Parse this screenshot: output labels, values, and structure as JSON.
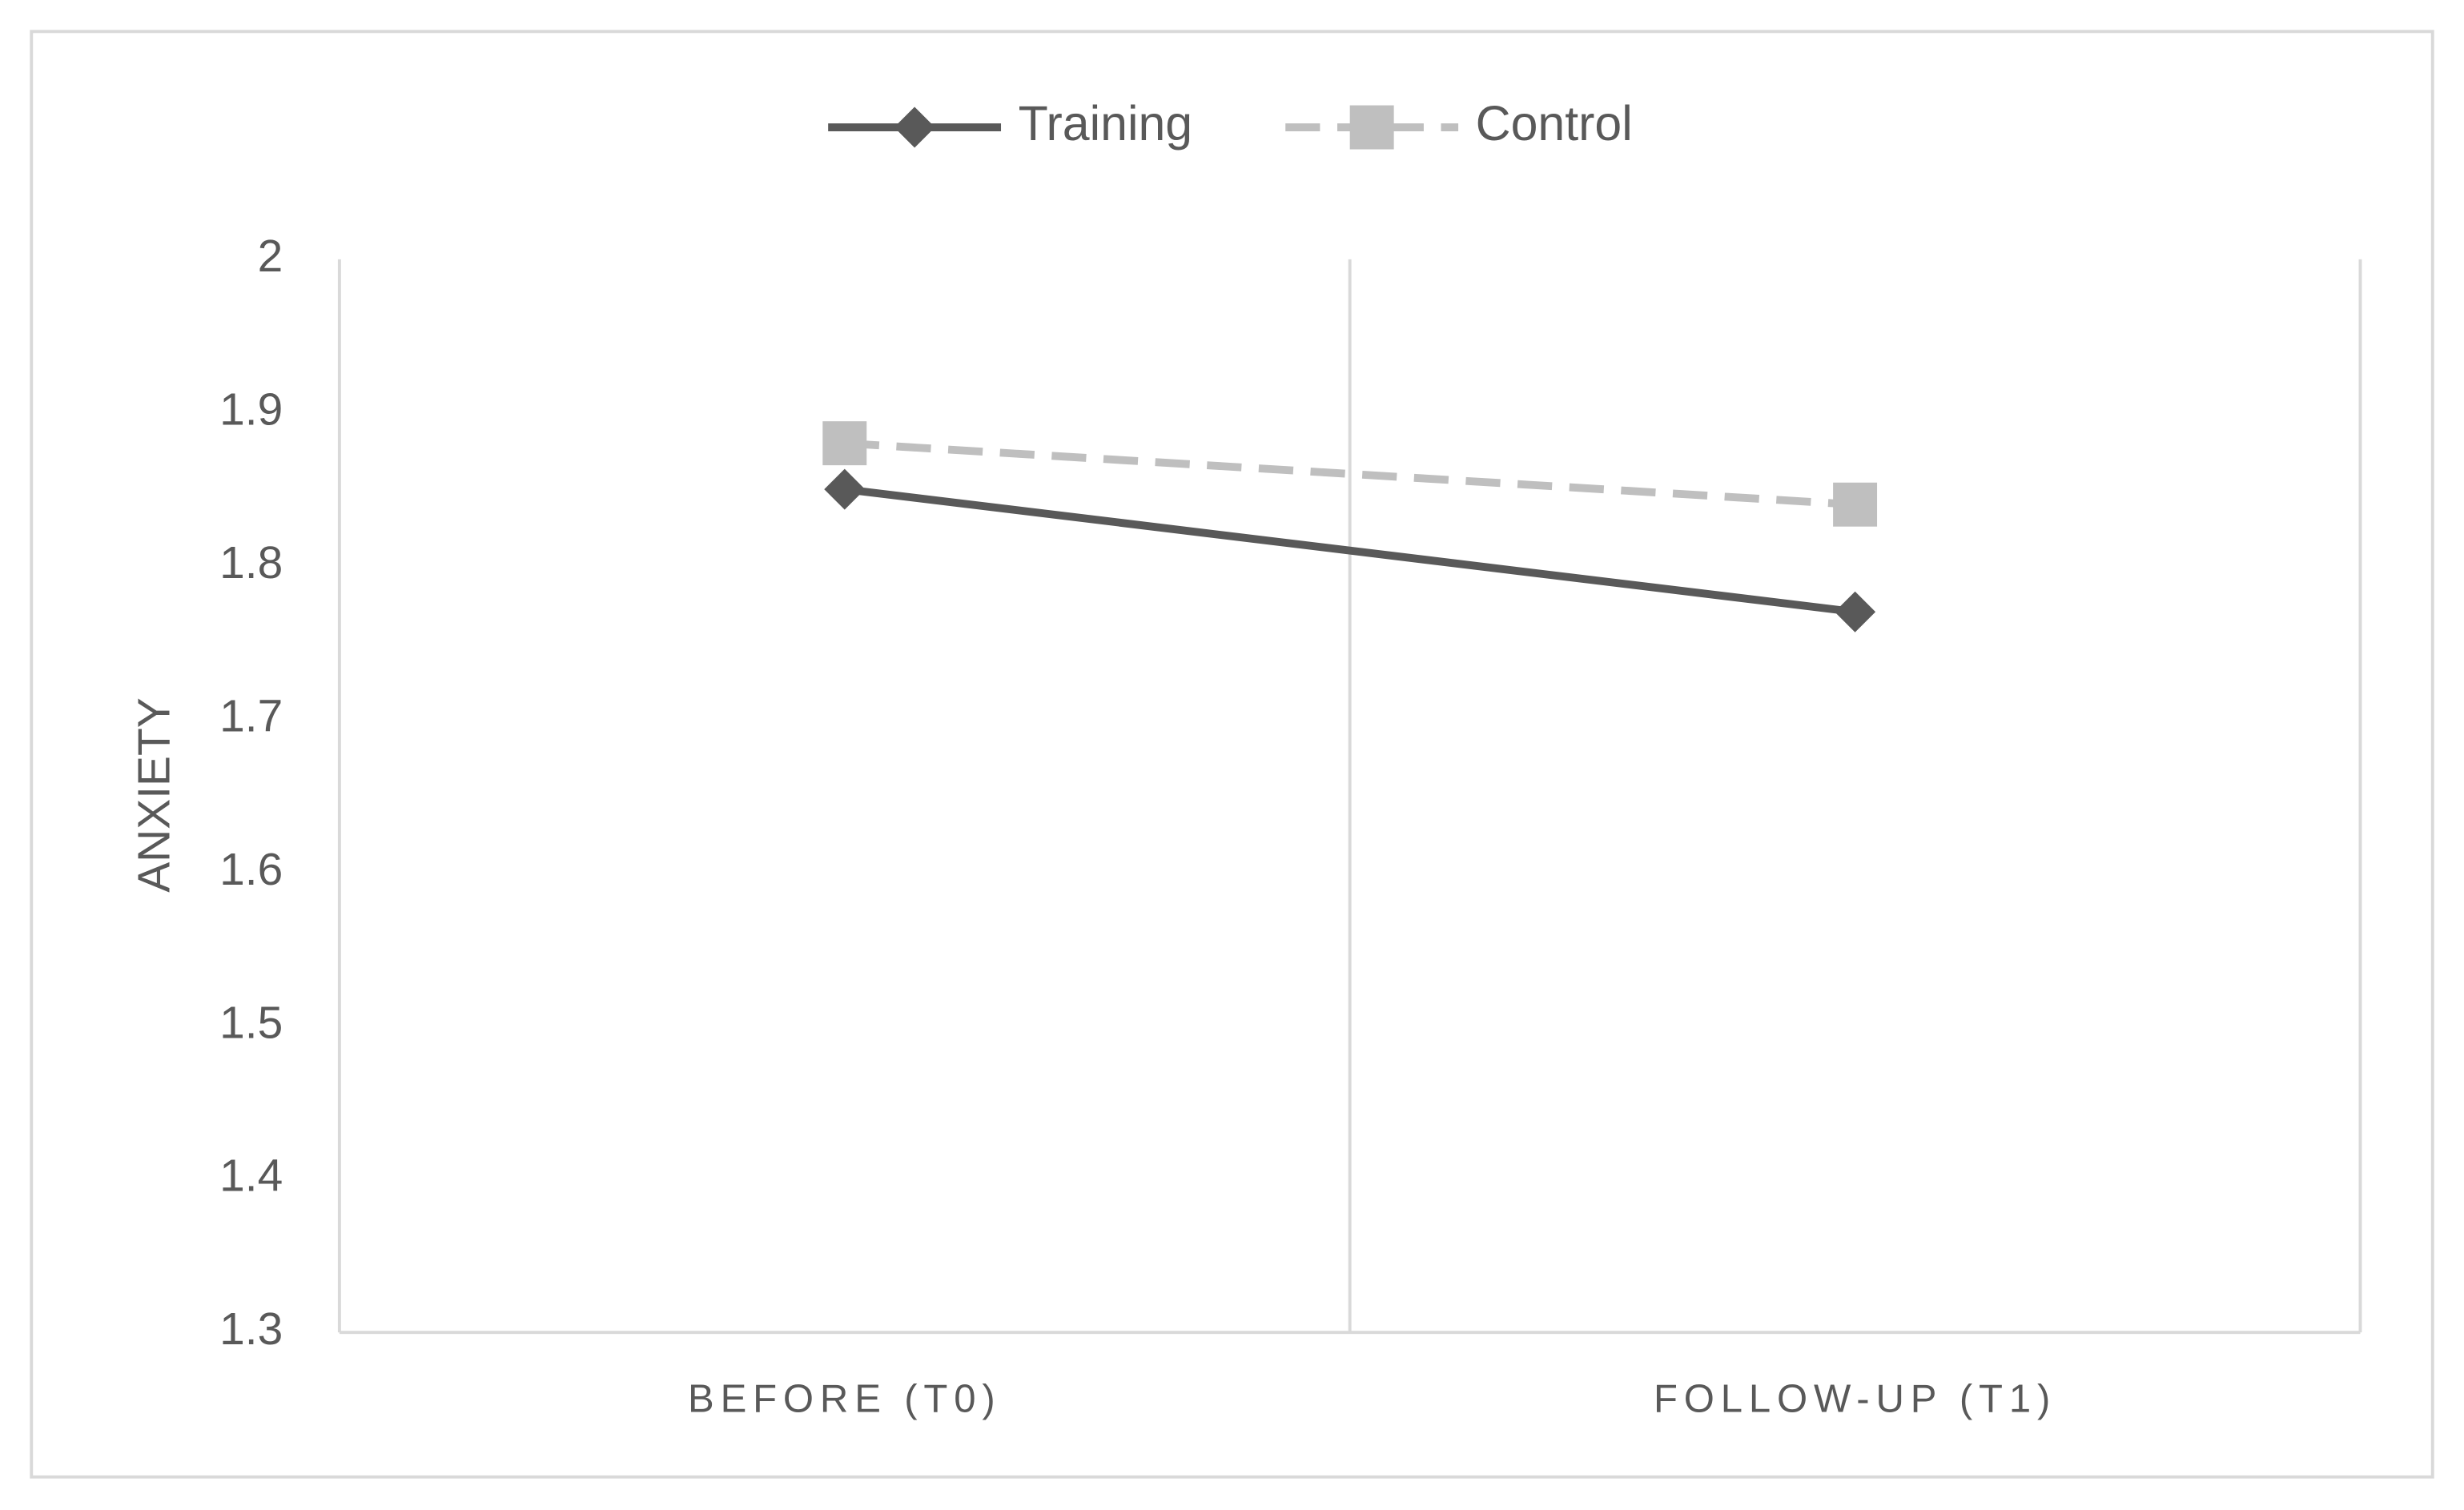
{
  "chart_data": {
    "type": "line",
    "categories": [
      "BEFORE (T0)",
      "FOLLOW-UP (T1)"
    ],
    "series": [
      {
        "name": "Training",
        "color": "#595959",
        "marker": "diamond",
        "dashed": false,
        "values": [
          1.85,
          1.77
        ]
      },
      {
        "name": "Control",
        "color": "#bfbfbf",
        "marker": "square",
        "dashed": true,
        "values": [
          1.88,
          1.84
        ]
      }
    ],
    "y_label": "ANXIETY",
    "ylim": [
      1.3,
      2
    ],
    "yticks": [
      1.3,
      1.4,
      1.5,
      1.6,
      1.7,
      1.8,
      1.9,
      2
    ],
    "category_grid": true,
    "legend": "top"
  }
}
